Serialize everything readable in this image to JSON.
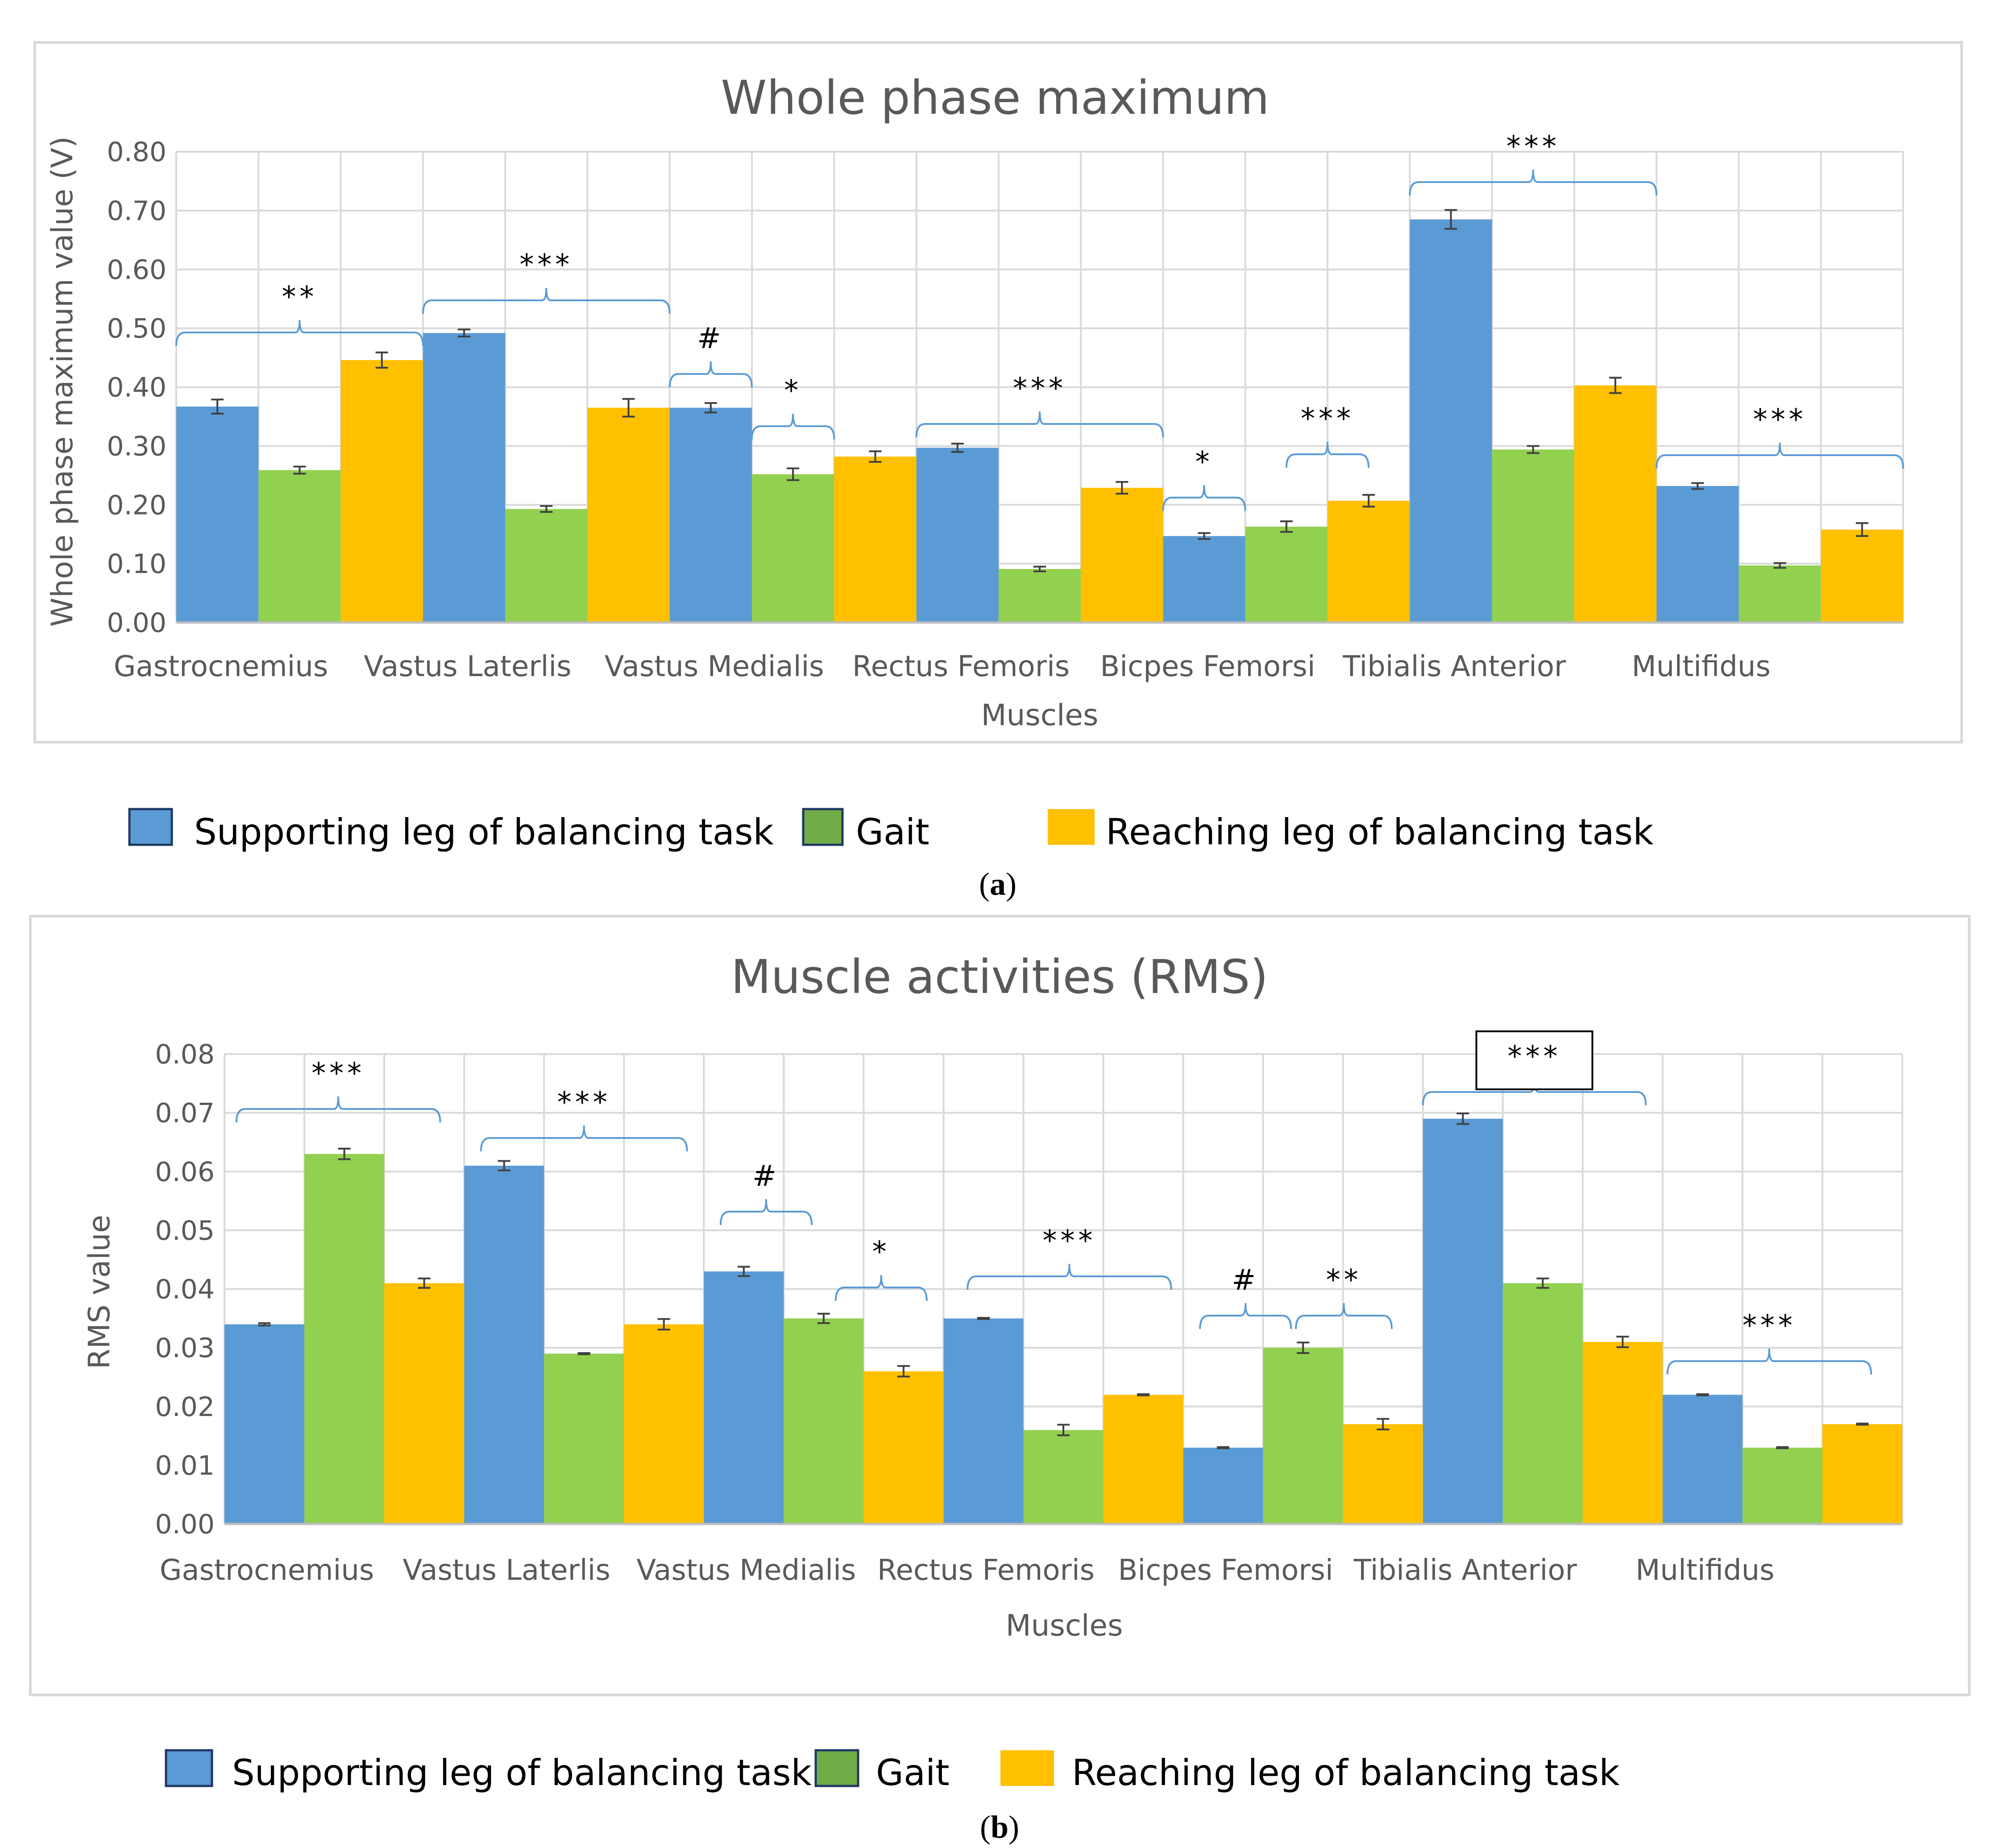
{
  "figure": {
    "legend": [
      {
        "label": "Supporting leg of balancing task",
        "color": "#5B9BD5"
      },
      {
        "label": "Gait",
        "color": "#92D050"
      },
      {
        "label": "Reaching leg of balancing task",
        "color": "#FFC000"
      }
    ],
    "caption_a": "a",
    "caption_b": "b"
  },
  "chart_data": [
    {
      "type": "bar",
      "title": "Whole phase maximum",
      "xlabel": "Muscles",
      "ylabel": "Whole phase maximum value (V)",
      "ylim": [
        0,
        0.8
      ],
      "yticks": [
        "0.00",
        "0.10",
        "0.20",
        "0.30",
        "0.40",
        "0.50",
        "0.60",
        "0.70",
        "0.80"
      ],
      "categories": [
        "Gastrocnemius",
        "Vastus Laterlis",
        "Vastus Medialis",
        "Rectus Femoris",
        "Bicpes Femorsi",
        "Tibialis Anterior",
        "Multifidus"
      ],
      "series": [
        {
          "name": "Supporting leg of balancing task",
          "values": [
            0.367,
            0.492,
            0.365,
            0.297,
            0.147,
            0.685,
            0.232
          ],
          "errors": [
            0.012,
            0.006,
            0.008,
            0.007,
            0.005,
            0.016,
            0.005
          ]
        },
        {
          "name": "Gait",
          "values": [
            0.259,
            0.193,
            0.252,
            0.091,
            0.163,
            0.294,
            0.097
          ],
          "errors": [
            0.006,
            0.005,
            0.01,
            0.004,
            0.009,
            0.006,
            0.004
          ]
        },
        {
          "name": "Reaching leg of balancing task",
          "values": [
            0.446,
            0.365,
            0.282,
            0.229,
            0.207,
            0.403,
            0.158
          ],
          "errors": [
            0.013,
            0.015,
            0.009,
            0.01,
            0.01,
            0.013,
            0.011
          ]
        }
      ],
      "annotations": [
        {
          "text": "**",
          "from": 0.0,
          "to": 1.0
        },
        {
          "text": "***",
          "from": 1.0,
          "to": 2.0
        },
        {
          "text": "#",
          "from": 2.0,
          "to": 2.333
        },
        {
          "text": "*",
          "from": 2.333,
          "to": 2.667
        },
        {
          "text": "***",
          "from": 3.0,
          "to": 4.0
        },
        {
          "text": "*",
          "from": 4.0,
          "to": 4.333
        },
        {
          "text": "***",
          "from": 4.5,
          "to": 4.833
        },
        {
          "text": "***",
          "from": 5.0,
          "to": 6.0
        },
        {
          "text": "***",
          "from": 6.0,
          "to": 7.0
        }
      ]
    },
    {
      "type": "bar",
      "title": "Muscle activities (RMS)",
      "xlabel": "Muscles",
      "ylabel": "RMS value",
      "ylim": [
        0,
        0.08
      ],
      "yticks": [
        "0.00",
        "0.01",
        "0.02",
        "0.03",
        "0.04",
        "0.05",
        "0.06",
        "0.07",
        "0.08"
      ],
      "categories": [
        "Gastrocnemius",
        "Vastus Laterlis",
        "Vastus Medialis",
        "Rectus Femoris",
        "Bicpes Femorsi",
        "Tibialis Anterior",
        "Multifidus"
      ],
      "series": [
        {
          "name": "Supporting leg of balancing task",
          "values": [
            0.034,
            0.061,
            0.043,
            0.035,
            0.013,
            0.069,
            0.022
          ],
          "errors": [
            0.0002,
            0.0008,
            0.0008,
            0.0001,
            0.0001,
            0.0009,
            0.0001
          ]
        },
        {
          "name": "Gait",
          "values": [
            0.063,
            0.029,
            0.035,
            0.016,
            0.03,
            0.041,
            0.013
          ],
          "errors": [
            0.0009,
            0.0001,
            0.0008,
            0.0009,
            0.0009,
            0.0008,
            0.0001
          ]
        },
        {
          "name": "Reaching leg of balancing task",
          "values": [
            0.041,
            0.034,
            0.026,
            0.022,
            0.017,
            0.031,
            0.017
          ],
          "errors": [
            0.0008,
            0.0009,
            0.0009,
            0.0001,
            0.0009,
            0.0009,
            0.0001
          ]
        }
      ],
      "annotations": [
        {
          "text": "***",
          "from": 0.05,
          "to": 0.9
        },
        {
          "text": "***",
          "from": 1.07,
          "to": 1.93
        },
        {
          "text": "#",
          "from": 2.07,
          "to": 2.45
        },
        {
          "text": "*",
          "from": 2.55,
          "to": 2.93
        },
        {
          "text": "***",
          "from": 3.1,
          "to": 3.95
        },
        {
          "text": "#",
          "from": 4.07,
          "to": 4.45
        },
        {
          "text": "**",
          "from": 4.47,
          "to": 4.87
        },
        {
          "text": "***",
          "from": 5.0,
          "to": 5.93,
          "boxed": true
        },
        {
          "text": "***",
          "from": 6.02,
          "to": 6.87
        }
      ]
    }
  ]
}
